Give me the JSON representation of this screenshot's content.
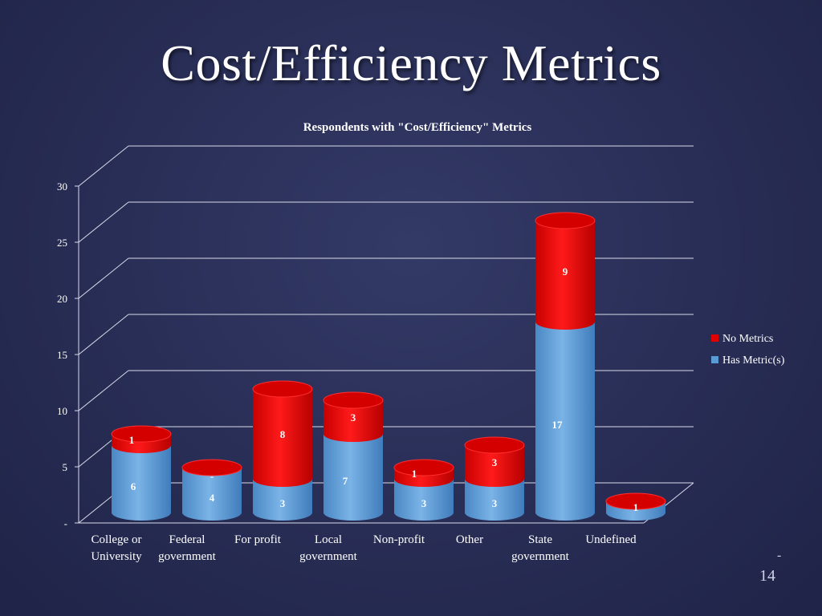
{
  "slide": {
    "title": "Cost/Efficiency Metrics",
    "page_dash": "-",
    "page_number": "14"
  },
  "colors": {
    "no_metrics": "#e00000",
    "has_metrics": "#5b9bd5",
    "label": "#ffffff",
    "grid": "#d8dbe8"
  },
  "chart_data": {
    "type": "bar",
    "stacked": true,
    "three_d": true,
    "bar_shape": "cylinder",
    "title": "Respondents with \"Cost/Efficiency\" Metrics",
    "categories": [
      [
        "College or",
        "University"
      ],
      [
        "Federal",
        "government"
      ],
      [
        "For profit"
      ],
      [
        "Local",
        "government"
      ],
      [
        "Non-profit"
      ],
      [
        "Other"
      ],
      [
        "State",
        "government"
      ],
      [
        "Undefined"
      ]
    ],
    "series": [
      {
        "name": "Has Metric(s)",
        "color": "#5b9bd5",
        "values": [
          6,
          4,
          3,
          7,
          3,
          3,
          17,
          1
        ],
        "labels": [
          "6",
          "4",
          "3",
          "7",
          "3",
          "3",
          "17",
          "1"
        ]
      },
      {
        "name": "No Metrics",
        "color": "#e00000",
        "values": [
          1,
          0,
          8,
          3,
          1,
          3,
          9,
          0
        ],
        "labels": [
          "1",
          "-",
          "8",
          "3",
          "1",
          "3",
          "9",
          ""
        ]
      }
    ],
    "y_ticks": [
      "-",
      "5",
      "10",
      "15",
      "20",
      "25",
      "30"
    ],
    "ylim": [
      0,
      30
    ],
    "y_step": 5,
    "grid": true,
    "legend": {
      "position": "right",
      "entries": [
        "No Metrics",
        "Has Metric(s)"
      ]
    }
  }
}
